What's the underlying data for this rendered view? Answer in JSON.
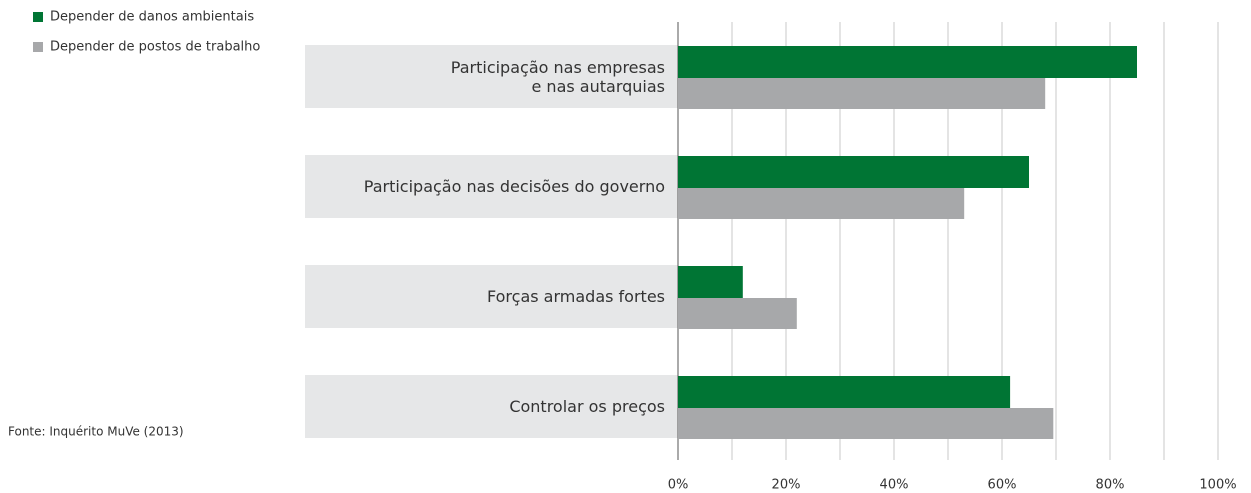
{
  "chart_data": {
    "type": "hbar",
    "categories": [
      "Participação nas empresas\ne nas autarquias",
      "Participação nas decisões do governo",
      "Forças armadas fortes",
      "Controlar os preços"
    ],
    "series": [
      {
        "name": "Depender de danos ambientais",
        "color": "#007534",
        "values": [
          85,
          65,
          12,
          61.5
        ]
      },
      {
        "name": "Depender de postos de trabalho",
        "color": "#a7a8aa",
        "values": [
          68,
          53,
          22,
          69.5
        ]
      }
    ],
    "xlim": [
      0,
      100
    ],
    "xticks": [
      {
        "value": 0,
        "label": "0%"
      },
      {
        "value": 20,
        "label": "20%"
      },
      {
        "value": 40,
        "label": "40%"
      },
      {
        "value": 60,
        "label": "60%"
      },
      {
        "value": 80,
        "label": "80%"
      },
      {
        "value": 100,
        "label": "100%"
      }
    ],
    "xminor": [
      10,
      30,
      50,
      70,
      90
    ],
    "grid": true,
    "legend": "top-left",
    "source": "Fonte: Inquérito MuVe (2013)"
  }
}
